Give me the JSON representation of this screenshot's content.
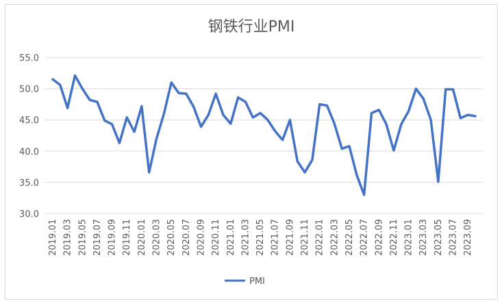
{
  "chart_data": {
    "type": "line",
    "title": "钢铁行业PMI",
    "xlabel": "",
    "ylabel": "",
    "ylim": [
      30,
      55
    ],
    "yticks": [
      "55.0",
      "50.0",
      "45.0",
      "40.0",
      "35.0",
      "30.0"
    ],
    "ytick_values": [
      55,
      50,
      45,
      40,
      35,
      30
    ],
    "grid": true,
    "legend_position": "bottom",
    "x": [
      "2019.01",
      "2019.02",
      "2019.03",
      "2019.04",
      "2019.05",
      "2019.06",
      "2019.07",
      "2019.08",
      "2019.09",
      "2019.10",
      "2019.11",
      "2019.12",
      "2020.01",
      "2020.02",
      "2020.03",
      "2020.04",
      "2020.05",
      "2020.06",
      "2020.07",
      "2020.08",
      "2020.09",
      "2020.10",
      "2020.11",
      "2020.12",
      "2021.01",
      "2021.02",
      "2021.03",
      "2021.04",
      "2021.05",
      "2021.06",
      "2021.07",
      "2021.08",
      "2021.09",
      "2021.10",
      "2021.11",
      "2021.12",
      "2022.01",
      "2022.02",
      "2022.03",
      "2022.04",
      "2022.05",
      "2022.06",
      "2022.07",
      "2022.08",
      "2022.09",
      "2022.10",
      "2022.11",
      "2022.12",
      "2023.01",
      "2023.02",
      "2023.03",
      "2023.04",
      "2023.05",
      "2023.06",
      "2023.07",
      "2023.08",
      "2023.09",
      "2023.10"
    ],
    "xtick_labels": [
      "2019.01",
      "2019.03",
      "2019.05",
      "2019.07",
      "2019.09",
      "2019.11",
      "2020.01",
      "2020.03",
      "2020.05",
      "2020.07",
      "2020.09",
      "2020.11",
      "2021.01",
      "2021.03",
      "2021.05",
      "2021.07",
      "2021.09",
      "2021.11",
      "2022.01",
      "2022.03",
      "2022.05",
      "2022.07",
      "2022.09",
      "2022.11",
      "2023.01",
      "2023.03",
      "2023.05",
      "2023.07",
      "2023.09"
    ],
    "series": [
      {
        "name": "PMI",
        "color": "#4472c4",
        "values": [
          51.5,
          50.6,
          46.9,
          52.1,
          50.0,
          48.2,
          47.9,
          44.9,
          44.3,
          41.3,
          45.4,
          43.1,
          47.2,
          36.6,
          42.0,
          46.0,
          51.0,
          49.3,
          49.2,
          47.1,
          43.9,
          45.8,
          49.2,
          45.8,
          44.4,
          48.6,
          47.9,
          45.4,
          46.1,
          45.0,
          43.2,
          41.8,
          45.0,
          38.4,
          36.6,
          38.6,
          47.5,
          47.3,
          44.4,
          40.4,
          40.8,
          36.2,
          33.0,
          46.1,
          46.6,
          44.3,
          40.1,
          44.3,
          46.4,
          50.0,
          48.4,
          45.0,
          35.1,
          49.9,
          49.9,
          45.3,
          45.8,
          45.6
        ]
      }
    ]
  }
}
